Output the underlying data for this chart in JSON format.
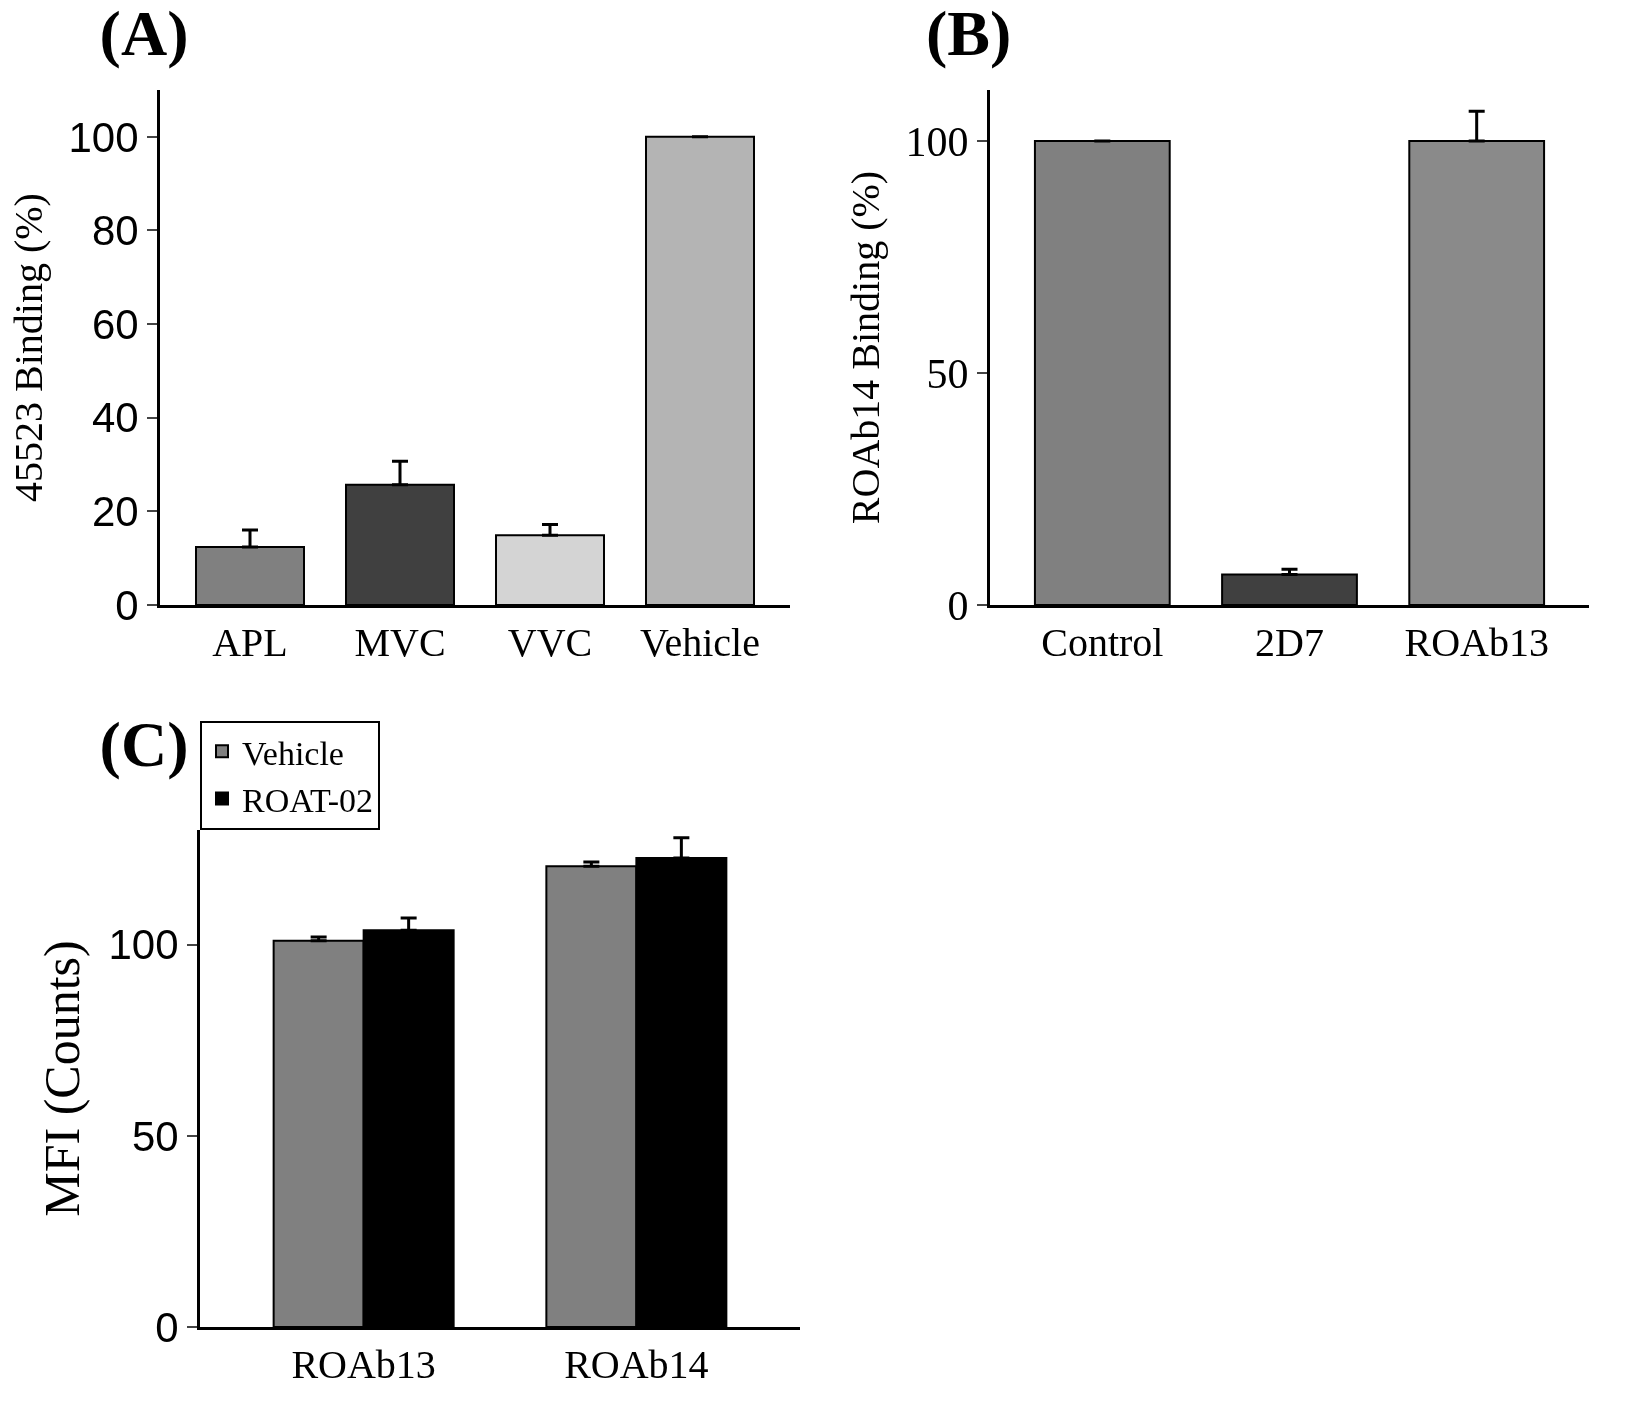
{
  "chart_data": [
    {
      "type": "bar",
      "title": "(A)",
      "ylabel": "45523 Binding (%)",
      "categories": [
        "APL",
        "MVC",
        "VVC",
        "Vehicle"
      ],
      "values": [
        12.4,
        25.7,
        14.9,
        100
      ],
      "colors": [
        "#808080",
        "#404040",
        "#d4d4d4",
        "#b4b4b4"
      ],
      "errors": [
        [
          12.4,
          16
        ],
        [
          25.7,
          30.7
        ],
        [
          14.9,
          17.2
        ],
        null
      ],
      "ylim": [
        0,
        110
      ],
      "yticks": [
        0,
        20,
        40,
        60,
        80,
        100
      ]
    },
    {
      "type": "bar",
      "title": "(B)",
      "ylabel": "ROAb14 Binding (%)",
      "categories": [
        "Control",
        "2D7",
        "ROAb13"
      ],
      "values": [
        100,
        6.6,
        100
      ],
      "colors": [
        "#808080",
        "#404040",
        "#8a8a8a"
      ],
      "errors": [
        null,
        [
          6.6,
          7.7
        ],
        [
          100,
          106.4
        ]
      ],
      "ylim": [
        0,
        111
      ],
      "yticks": [
        0,
        50,
        100
      ]
    },
    {
      "type": "bar",
      "title": "(C)",
      "ylabel": "MFI (Counts)",
      "categories": [
        "ROAb13",
        "ROAb14"
      ],
      "legend": "top left",
      "ylim": [
        0,
        130
      ],
      "yticks": [
        0,
        50,
        100
      ],
      "series": [
        {
          "name": "Vehicle",
          "color": "#808080",
          "values": [
            101,
            120.5
          ],
          "errors": [
            [
              101,
              102
            ],
            [
              120.5,
              121.6
            ]
          ]
        },
        {
          "name": "ROAT-02",
          "color": "#000000",
          "values": [
            103.8,
            122.7
          ],
          "errors": [
            [
              103.8,
              107
            ],
            [
              122.7,
              128
            ]
          ]
        }
      ]
    }
  ]
}
